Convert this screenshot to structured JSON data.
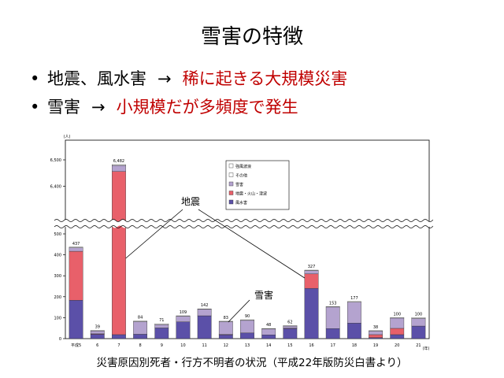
{
  "title": "雪害の特徴",
  "bullets": [
    {
      "lead": "地震、風水害",
      "arrow": "→",
      "result": "稀に起きる大規模災害"
    },
    {
      "lead": "雪害",
      "arrow": "→",
      "result": "小規模だが多頻度で発生"
    }
  ],
  "caption": "災害原因別死者・行方不明者の状況（平成22年版防災白書より）",
  "colors": {
    "accent_red": "#c00000",
    "series": [
      "#5b50a8",
      "#e8606a",
      "#b4a3cf",
      "#ffffff",
      "#ffffff"
    ]
  },
  "chart_data": {
    "type": "bar",
    "stacked": true,
    "axis_break": true,
    "y_unit": "(人)",
    "x_unit": "(年)",
    "categories": [
      "平成5",
      "6",
      "7",
      "8",
      "9",
      "10",
      "11",
      "12",
      "13",
      "14",
      "15",
      "16",
      "17",
      "18",
      "19",
      "20",
      "21"
    ],
    "totals": [
      437,
      39,
      6482,
      84,
      71,
      109,
      142,
      83,
      90,
      48,
      62,
      327,
      153,
      177,
      38,
      100,
      100
    ],
    "total_labels": [
      "437",
      "39",
      "6,482",
      "84",
      "71",
      "109",
      "142",
      "83",
      "90",
      "48",
      "62",
      "327",
      "153",
      "177",
      "38",
      "100",
      "100"
    ],
    "y_ticks_lower": [
      "0",
      "100",
      "200",
      "300",
      "400",
      "500"
    ],
    "y_ticks_upper": [
      "6,400",
      "6,500"
    ],
    "legend_position": "top-right",
    "series": [
      {
        "name": "風水害",
        "values": [
          183,
          21,
          19,
          21,
          51,
          80,
          109,
          19,
          27,
          18,
          48,
          240,
          48,
          74,
          5,
          19,
          60
        ]
      },
      {
        "name": "地震・火山・津波",
        "values": [
          234,
          2,
          6437,
          0,
          0,
          0,
          0,
          1,
          0,
          0,
          2,
          69,
          0,
          0,
          14,
          30,
          0
        ]
      },
      {
        "name": "雪害",
        "values": [
          17,
          14,
          23,
          60,
          16,
          27,
          31,
          61,
          60,
          28,
          11,
          16,
          103,
          100,
          17,
          50,
          36
        ]
      },
      {
        "name": "その他",
        "values": [
          3,
          2,
          3,
          3,
          4,
          2,
          2,
          2,
          3,
          2,
          1,
          2,
          2,
          3,
          2,
          1,
          4
        ]
      },
      {
        "name": "強風波浪",
        "values": [
          0,
          0,
          0,
          0,
          0,
          0,
          0,
          0,
          0,
          0,
          0,
          0,
          0,
          0,
          0,
          0,
          0
        ]
      }
    ],
    "annotations": [
      {
        "text": "地震"
      },
      {
        "text": "雪害"
      }
    ]
  }
}
